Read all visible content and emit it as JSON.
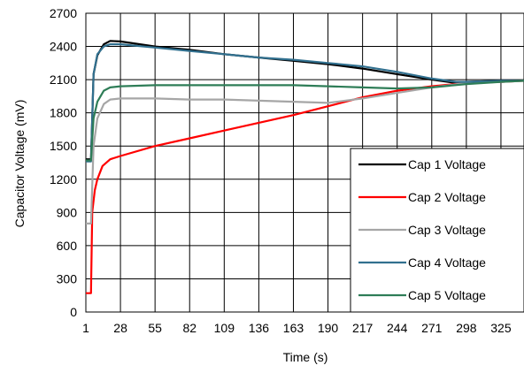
{
  "chart_data": {
    "type": "line",
    "xlabel": "Time (s)",
    "ylabel": "Capacitor Voltage (mV)",
    "xlim": [
      1,
      343
    ],
    "ylim": [
      0,
      2700
    ],
    "x_ticks": [
      1,
      28,
      55,
      82,
      109,
      136,
      163,
      190,
      217,
      244,
      271,
      298,
      325
    ],
    "y_ticks": [
      0,
      300,
      600,
      900,
      1200,
      1500,
      1800,
      2100,
      2400,
      2700
    ],
    "grid": true,
    "legend_position": "bottom-right",
    "series": [
      {
        "name": "Cap 1 Voltage",
        "color": "#000000",
        "points": [
          [
            1,
            1380
          ],
          [
            5,
            1380
          ],
          [
            7,
            2150
          ],
          [
            10,
            2320
          ],
          [
            15,
            2420
          ],
          [
            20,
            2450
          ],
          [
            28,
            2445
          ],
          [
            55,
            2400
          ],
          [
            82,
            2370
          ],
          [
            109,
            2330
          ],
          [
            136,
            2300
          ],
          [
            163,
            2270
          ],
          [
            190,
            2240
          ],
          [
            217,
            2200
          ],
          [
            244,
            2150
          ],
          [
            271,
            2100
          ],
          [
            290,
            2070
          ],
          [
            298,
            2080
          ],
          [
            325,
            2090
          ],
          [
            343,
            2090
          ]
        ]
      },
      {
        "name": "Cap 2 Voltage",
        "color": "#ff0000",
        "points": [
          [
            1,
            170
          ],
          [
            5,
            170
          ],
          [
            6,
            900
          ],
          [
            8,
            1100
          ],
          [
            10,
            1200
          ],
          [
            14,
            1320
          ],
          [
            20,
            1380
          ],
          [
            28,
            1410
          ],
          [
            55,
            1500
          ],
          [
            82,
            1570
          ],
          [
            109,
            1640
          ],
          [
            136,
            1710
          ],
          [
            163,
            1780
          ],
          [
            190,
            1860
          ],
          [
            217,
            1940
          ],
          [
            244,
            2000
          ],
          [
            271,
            2040
          ],
          [
            298,
            2070
          ],
          [
            325,
            2080
          ],
          [
            343,
            2090
          ]
        ]
      },
      {
        "name": "Cap 3 Voltage",
        "color": "#a6a6a6",
        "points": [
          [
            1,
            800
          ],
          [
            5,
            800
          ],
          [
            7,
            1500
          ],
          [
            10,
            1750
          ],
          [
            15,
            1880
          ],
          [
            20,
            1920
          ],
          [
            28,
            1930
          ],
          [
            55,
            1930
          ],
          [
            82,
            1920
          ],
          [
            109,
            1920
          ],
          [
            136,
            1910
          ],
          [
            163,
            1900
          ],
          [
            190,
            1890
          ],
          [
            217,
            1930
          ],
          [
            244,
            1980
          ],
          [
            271,
            2030
          ],
          [
            298,
            2070
          ],
          [
            325,
            2080
          ],
          [
            343,
            2090
          ]
        ]
      },
      {
        "name": "Cap 4 Voltage",
        "color": "#31708f",
        "points": [
          [
            1,
            1360
          ],
          [
            5,
            1360
          ],
          [
            7,
            2150
          ],
          [
            10,
            2330
          ],
          [
            15,
            2400
          ],
          [
            20,
            2420
          ],
          [
            28,
            2420
          ],
          [
            55,
            2390
          ],
          [
            82,
            2360
          ],
          [
            109,
            2330
          ],
          [
            136,
            2300
          ],
          [
            163,
            2280
          ],
          [
            190,
            2250
          ],
          [
            217,
            2220
          ],
          [
            244,
            2170
          ],
          [
            271,
            2110
          ],
          [
            290,
            2080
          ],
          [
            298,
            2080
          ],
          [
            325,
            2090
          ],
          [
            343,
            2090
          ]
        ]
      },
      {
        "name": "Cap 5 Voltage",
        "color": "#2e7d57",
        "points": [
          [
            1,
            1370
          ],
          [
            5,
            1370
          ],
          [
            7,
            1750
          ],
          [
            10,
            1900
          ],
          [
            15,
            2000
          ],
          [
            20,
            2030
          ],
          [
            28,
            2040
          ],
          [
            55,
            2050
          ],
          [
            82,
            2050
          ],
          [
            109,
            2050
          ],
          [
            136,
            2050
          ],
          [
            163,
            2050
          ],
          [
            190,
            2040
          ],
          [
            217,
            2030
          ],
          [
            244,
            2020
          ],
          [
            271,
            2030
          ],
          [
            298,
            2060
          ],
          [
            325,
            2080
          ],
          [
            343,
            2090
          ]
        ]
      }
    ]
  }
}
